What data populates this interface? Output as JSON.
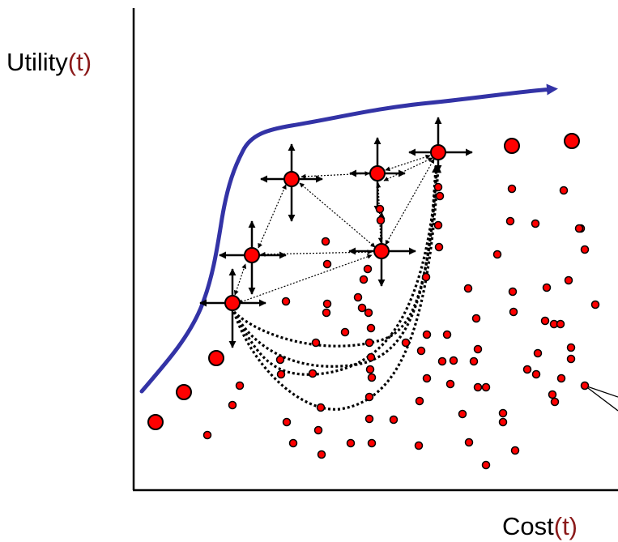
{
  "y_axis_title": {
    "text": "Utility",
    "variable": "(t)"
  },
  "x_axis_title": {
    "text": "Cost",
    "variable": "(t)"
  },
  "colors": {
    "curve": "#3333a6",
    "node_fill": "#ff0000",
    "node_stroke": "#000000",
    "axis": "#000000",
    "variable": "#8b1a1a"
  }
}
